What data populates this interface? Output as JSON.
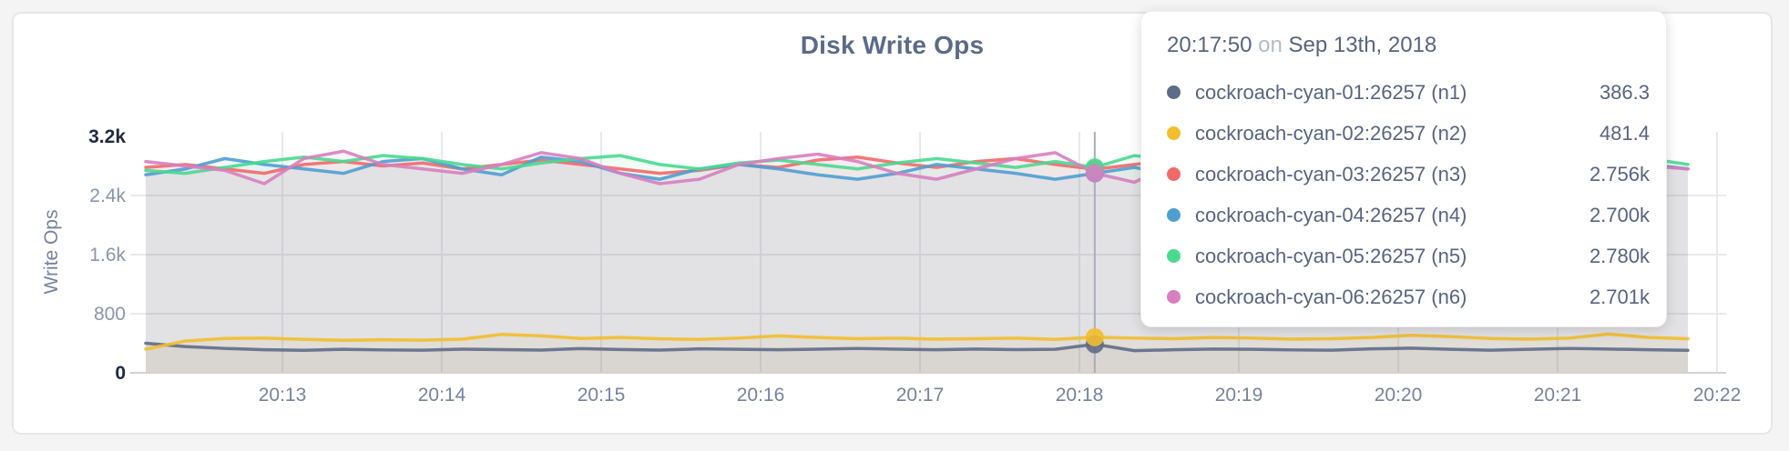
{
  "title": "Disk Write Ops",
  "tooltip": {
    "time": "20:17:50",
    "conjunction": "on",
    "date": "Sep 13th, 2018",
    "rows": [
      {
        "label": "cockroach-cyan-01:26257 (n1)",
        "value": "386.3",
        "color": "#5F6C87"
      },
      {
        "label": "cockroach-cyan-02:26257 (n2)",
        "value": "481.4",
        "color": "#F2BE2C"
      },
      {
        "label": "cockroach-cyan-03:26257 (n3)",
        "value": "2.756k",
        "color": "#F16969"
      },
      {
        "label": "cockroach-cyan-04:26257 (n4)",
        "value": "2.700k",
        "color": "#4E9FD1"
      },
      {
        "label": "cockroach-cyan-05:26257 (n5)",
        "value": "2.780k",
        "color": "#49D990"
      },
      {
        "label": "cockroach-cyan-06:26257 (n6)",
        "value": "2.701k",
        "color": "#D77FBF"
      }
    ]
  },
  "chart_data": {
    "type": "line",
    "title": "Disk Write Ops",
    "xlabel": "",
    "ylabel": "Write Ops",
    "ylim": [
      0,
      3200
    ],
    "grid": true,
    "legend_position": "tooltip-overlay",
    "x_ticks": [
      "20:13",
      "20:14",
      "20:15",
      "20:16",
      "20:17",
      "20:18",
      "20:19",
      "20:20",
      "20:21",
      "20:22"
    ],
    "y_ticks": [
      {
        "value": 0,
        "label": "0",
        "strong": true
      },
      {
        "value": 800,
        "label": "800",
        "strong": false
      },
      {
        "value": 1600,
        "label": "1.6k",
        "strong": false
      },
      {
        "value": 2400,
        "label": "2.4k",
        "strong": false
      },
      {
        "value": 3200,
        "label": "3.2k",
        "strong": true
      }
    ],
    "hover": {
      "index": 24,
      "time": "20:17:50",
      "date": "Sep 13th, 2018"
    },
    "series": [
      {
        "name": "cockroach-cyan-01:26257 (n1)",
        "short": "n1",
        "color": "#5F6C87",
        "values": [
          400,
          355,
          330,
          312,
          305,
          318,
          310,
          306,
          320,
          314,
          308,
          328,
          316,
          308,
          324,
          318,
          312,
          320,
          330,
          320,
          312,
          322,
          314,
          318,
          386.3,
          300,
          312,
          322,
          318,
          310,
          306,
          324,
          334,
          318,
          306,
          318,
          330,
          322,
          312,
          305
        ]
      },
      {
        "name": "cockroach-cyan-02:26257 (n2)",
        "short": "n2",
        "color": "#F2BE2C",
        "values": [
          320,
          430,
          465,
          470,
          452,
          440,
          448,
          442,
          455,
          520,
          500,
          465,
          478,
          460,
          452,
          470,
          500,
          478,
          462,
          470,
          455,
          462,
          470,
          452,
          481.4,
          470,
          462,
          478,
          470,
          455,
          462,
          478,
          508,
          490,
          465,
          455,
          470,
          525,
          478,
          462
        ]
      },
      {
        "name": "cockroach-cyan-03:26257 (n3)",
        "short": "n3",
        "color": "#F16969",
        "values": [
          2780,
          2820,
          2760,
          2700,
          2820,
          2860,
          2800,
          2840,
          2760,
          2820,
          2880,
          2820,
          2760,
          2700,
          2740,
          2820,
          2780,
          2880,
          2920,
          2840,
          2780,
          2860,
          2900,
          2820,
          2756,
          2820,
          2880,
          2800,
          2760,
          2880,
          2940,
          2840,
          2780,
          2820,
          2760,
          2700,
          2820,
          2880,
          2820,
          2760
        ]
      },
      {
        "name": "cockroach-cyan-04:26257 (n4)",
        "short": "n4",
        "color": "#4E9FD1",
        "values": [
          2680,
          2760,
          2900,
          2820,
          2760,
          2700,
          2860,
          2900,
          2760,
          2680,
          2920,
          2860,
          2700,
          2620,
          2760,
          2820,
          2760,
          2680,
          2620,
          2700,
          2820,
          2760,
          2700,
          2620,
          2700,
          2780,
          2680,
          2620,
          2760,
          2900,
          2820,
          2700,
          2760,
          2820,
          2760,
          2640,
          2700,
          2780,
          2820,
          2760
        ]
      },
      {
        "name": "cockroach-cyan-05:26257 (n5)",
        "short": "n5",
        "color": "#49D990",
        "values": [
          2740,
          2700,
          2780,
          2860,
          2920,
          2860,
          2940,
          2900,
          2820,
          2760,
          2840,
          2900,
          2940,
          2820,
          2760,
          2840,
          2880,
          2820,
          2760,
          2840,
          2900,
          2840,
          2780,
          2860,
          2780,
          2940,
          2880,
          2800,
          2840,
          2780,
          2720,
          2820,
          2880,
          2940,
          2860,
          2800,
          2840,
          2780,
          2900,
          2820
        ]
      },
      {
        "name": "cockroach-cyan-06:26257 (n6)",
        "short": "n6",
        "color": "#D77FBF",
        "values": [
          2860,
          2800,
          2740,
          2560,
          2900,
          3000,
          2820,
          2760,
          2700,
          2820,
          2980,
          2900,
          2700,
          2560,
          2620,
          2820,
          2900,
          2960,
          2860,
          2700,
          2620,
          2760,
          2900,
          2980,
          2701,
          2580,
          2820,
          2960,
          3040,
          2880,
          2760,
          2680,
          2820,
          2960,
          2860,
          2740,
          2800,
          2860,
          2800,
          2760
        ]
      }
    ]
  }
}
